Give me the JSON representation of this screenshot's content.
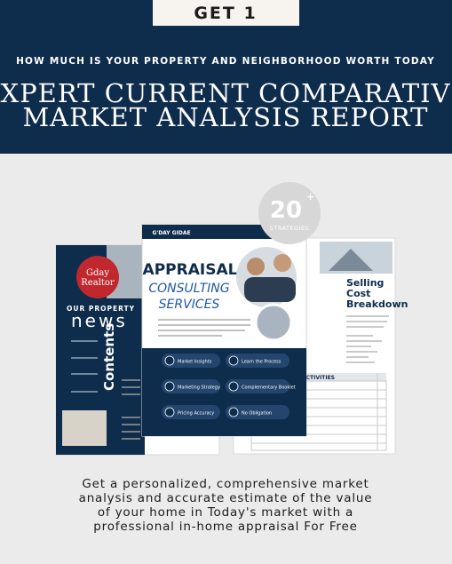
{
  "header": {
    "badge": "GET 1",
    "subtitle": "HOW MUCH IS YOUR PROPERTY AND NEIGHBORHOOD WORTH TODAY",
    "title_lines": [
      "EXPERT CURRENT COMPARATIVE",
      "MARKET ANALYSIS REPORT"
    ]
  },
  "mockup": {
    "badge_number": "20",
    "badge_plus": "+",
    "badge_label": "STRATEGIES",
    "left": {
      "logo": [
        "Gday",
        "Realtor"
      ],
      "kicker": "OUR PROPERTY",
      "headline": "news",
      "side": "Contents"
    },
    "center": {
      "brand": "G'DAY GIDAE",
      "title": "APPRAISAL",
      "subtitle_lines": [
        "CONSULTING",
        "SERVICES"
      ],
      "buttons": [
        "Market Insights",
        "Learn the Process",
        "Marketing Strategy",
        "Complementary Booklet",
        "Pricing Accuracy",
        "No Obligation"
      ]
    },
    "right": {
      "heading_lines": [
        "Selling",
        "Cost",
        "Breakdown"
      ],
      "table_header": "ACTIVITIES"
    }
  },
  "footer": {
    "lines": [
      "Get a personalized, comprehensive market",
      "analysis and accurate estimate of the value",
      "of your home in Today's market with a",
      "professional in-home appraisal For Free"
    ]
  }
}
